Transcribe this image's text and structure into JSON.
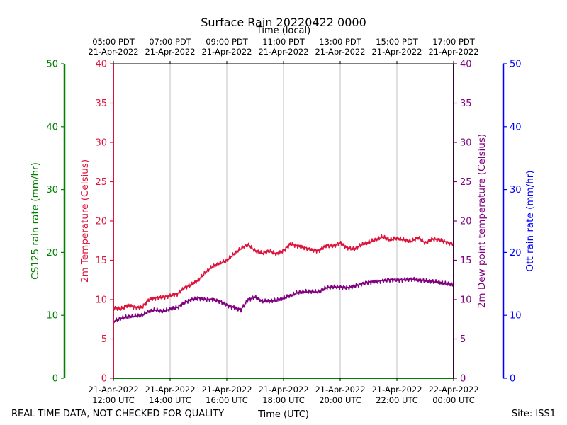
{
  "chart_data": {
    "type": "line",
    "title": "Surface Rain 20220422 0000",
    "top_axis_label": "Time (local)",
    "top_ticks": [
      {
        "line1": "05:00 PDT",
        "line2": "21-Apr-2022"
      },
      {
        "line1": "07:00 PDT",
        "line2": "21-Apr-2022"
      },
      {
        "line1": "09:00 PDT",
        "line2": "21-Apr-2022"
      },
      {
        "line1": "11:00 PDT",
        "line2": "21-Apr-2022"
      },
      {
        "line1": "13:00 PDT",
        "line2": "21-Apr-2022"
      },
      {
        "line1": "15:00 PDT",
        "line2": "21-Apr-2022"
      },
      {
        "line1": "17:00 PDT",
        "line2": "21-Apr-2022"
      }
    ],
    "xlabel": "Time (UTC)",
    "x_range_hours_utc": [
      12,
      24
    ],
    "bottom_ticks": [
      {
        "line1": "21-Apr-2022",
        "line2": "12:00 UTC"
      },
      {
        "line1": "21-Apr-2022",
        "line2": "14:00 UTC"
      },
      {
        "line1": "21-Apr-2022",
        "line2": "16:00 UTC"
      },
      {
        "line1": "21-Apr-2022",
        "line2": "18:00 UTC"
      },
      {
        "line1": "21-Apr-2022",
        "line2": "20:00 UTC"
      },
      {
        "line1": "21-Apr-2022",
        "line2": "22:00 UTC"
      },
      {
        "line1": "22-Apr-2022",
        "line2": "00:00 UTC"
      }
    ],
    "axes": {
      "cs125": {
        "label": "CS125 rain rate (mm/hr)",
        "ylim": [
          0,
          50
        ],
        "ticks": [
          "0",
          "10",
          "20",
          "30",
          "40",
          "50"
        ],
        "color": "#008000"
      },
      "temp": {
        "label": "2m Temperature (Celsius)",
        "ylim": [
          0,
          40
        ],
        "ticks": [
          "0",
          "5",
          "10",
          "15",
          "20",
          "25",
          "30",
          "35",
          "40"
        ],
        "color": "#dc143c"
      },
      "dew": {
        "label": "2m Dew point temperature (Celsius)",
        "ylim": [
          0,
          40
        ],
        "ticks": [
          "0",
          "5",
          "10",
          "15",
          "20",
          "25",
          "30",
          "35",
          "40"
        ],
        "color": "#800080"
      },
      "ott": {
        "label": "Ott rain rate (mm/hr)",
        "ylim": [
          0,
          50
        ],
        "ticks": [
          "0",
          "10",
          "20",
          "30",
          "40",
          "50"
        ],
        "color": "#0000ff"
      }
    },
    "series": [
      {
        "name": "2m Temperature",
        "color": "#dc143c",
        "x": [
          12.0,
          12.25,
          12.5,
          12.75,
          13.0,
          13.25,
          13.5,
          13.75,
          14.0,
          14.25,
          14.5,
          14.75,
          15.0,
          15.25,
          15.5,
          15.75,
          16.0,
          16.25,
          16.5,
          16.75,
          17.0,
          17.25,
          17.5,
          17.75,
          18.0,
          18.25,
          18.5,
          18.75,
          19.0,
          19.25,
          19.5,
          19.75,
          20.0,
          20.25,
          20.5,
          20.75,
          21.0,
          21.25,
          21.5,
          21.75,
          22.0,
          22.25,
          22.5,
          22.75,
          23.0,
          23.25,
          23.5,
          23.75,
          24.0
        ],
        "values": [
          9.0,
          8.8,
          9.3,
          9.0,
          9.0,
          10.0,
          10.2,
          10.3,
          10.5,
          10.7,
          11.5,
          11.9,
          12.5,
          13.5,
          14.2,
          14.6,
          15.0,
          15.8,
          16.5,
          17.0,
          16.2,
          15.9,
          16.2,
          15.8,
          16.2,
          17.1,
          16.8,
          16.6,
          16.3,
          16.2,
          16.9,
          16.8,
          17.2,
          16.6,
          16.4,
          17.0,
          17.3,
          17.6,
          18.0,
          17.6,
          17.8,
          17.6,
          17.4,
          17.9,
          17.2,
          17.7,
          17.6,
          17.3,
          17.0
        ]
      },
      {
        "name": "2m Dew point temperature",
        "color": "#800080",
        "x": [
          12.0,
          12.25,
          12.5,
          12.75,
          13.0,
          13.25,
          13.5,
          13.75,
          14.0,
          14.25,
          14.5,
          14.75,
          15.0,
          15.25,
          15.5,
          15.75,
          16.0,
          16.25,
          16.5,
          16.75,
          17.0,
          17.25,
          17.5,
          17.75,
          18.0,
          18.25,
          18.5,
          18.75,
          19.0,
          19.25,
          19.5,
          19.75,
          20.0,
          20.25,
          20.5,
          20.75,
          21.0,
          21.25,
          21.5,
          21.75,
          22.0,
          22.25,
          22.5,
          22.75,
          23.0,
          23.25,
          23.5,
          23.75,
          24.0
        ],
        "values": [
          7.2,
          7.6,
          7.8,
          7.9,
          8.0,
          8.5,
          8.7,
          8.5,
          8.8,
          9.0,
          9.6,
          10.0,
          10.2,
          10.0,
          10.0,
          9.8,
          9.3,
          9.0,
          8.7,
          10.0,
          10.3,
          9.8,
          9.8,
          9.9,
          10.2,
          10.5,
          10.9,
          11.0,
          11.0,
          11.0,
          11.5,
          11.6,
          11.6,
          11.5,
          11.7,
          12.0,
          12.2,
          12.3,
          12.4,
          12.5,
          12.5,
          12.5,
          12.6,
          12.5,
          12.4,
          12.3,
          12.2,
          12.0,
          11.9
        ]
      }
    ],
    "left_footer": "REAL TIME DATA, NOT CHECKED FOR QUALITY",
    "right_footer": "Site: ISS1"
  }
}
